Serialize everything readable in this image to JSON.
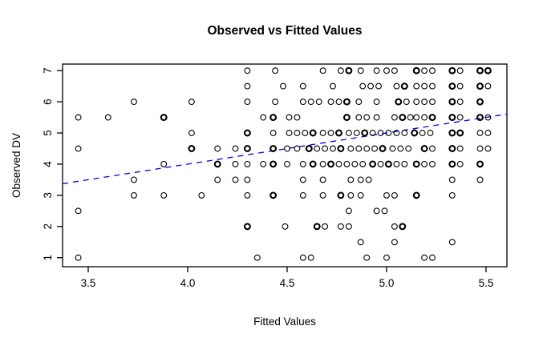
{
  "chart_data": {
    "type": "scatter",
    "title": "Observed vs Fitted Values",
    "xlabel": "Fitted Values",
    "ylabel": "Observed DV",
    "xlim": [
      3.371,
      5.605
    ],
    "ylim": [
      0.71,
      7.21
    ],
    "grid": false,
    "legend": "none",
    "x_ticks": {
      "values": [
        3.5,
        4.0,
        4.5,
        5.0,
        5.5
      ],
      "labels": [
        "3.5",
        "4.0",
        "4.5",
        "5.0",
        "5.5"
      ]
    },
    "y_ticks": {
      "values": [
        1,
        2,
        3,
        4,
        5,
        6,
        7
      ],
      "labels": [
        "1",
        "2",
        "3",
        "4",
        "5",
        "6",
        "7"
      ]
    },
    "marker": {
      "shape": "open-circle",
      "color": "#000000"
    },
    "reference_line": {
      "kind": "identity",
      "intercept": 0,
      "slope": 1,
      "style": "dashed",
      "color": "#0000EE"
    },
    "points_format": [
      "fitted_x",
      "observed_y",
      "bold_overplot_flag"
    ],
    "points": [
      [
        4.3,
        7,
        0
      ],
      [
        4.44,
        7,
        0
      ],
      [
        4.68,
        7,
        0
      ],
      [
        4.77,
        7,
        0
      ],
      [
        4.81,
        7,
        1
      ],
      [
        4.87,
        7,
        0
      ],
      [
        4.95,
        7,
        0
      ],
      [
        5.0,
        7,
        0
      ],
      [
        5.04,
        7,
        0
      ],
      [
        5.15,
        7,
        1
      ],
      [
        5.19,
        7,
        0
      ],
      [
        5.23,
        7,
        0
      ],
      [
        5.33,
        7,
        1
      ],
      [
        5.37,
        7,
        0
      ],
      [
        5.47,
        7,
        1
      ],
      [
        5.51,
        7,
        1
      ],
      [
        4.3,
        6.5,
        0
      ],
      [
        4.48,
        6.5,
        0
      ],
      [
        4.58,
        6.5,
        0
      ],
      [
        4.73,
        6.5,
        0
      ],
      [
        4.88,
        6.5,
        0
      ],
      [
        4.92,
        6.5,
        0
      ],
      [
        4.96,
        6.5,
        0
      ],
      [
        5.05,
        6.5,
        0
      ],
      [
        5.09,
        6.5,
        1
      ],
      [
        5.15,
        6.5,
        0
      ],
      [
        5.19,
        6.5,
        0
      ],
      [
        5.23,
        6.5,
        0
      ],
      [
        5.33,
        6.5,
        1
      ],
      [
        5.37,
        6.5,
        0
      ],
      [
        5.47,
        6.5,
        1
      ],
      [
        5.51,
        6.5,
        0
      ],
      [
        3.73,
        6,
        0
      ],
      [
        4.02,
        6,
        0
      ],
      [
        4.3,
        6,
        0
      ],
      [
        4.44,
        6,
        0
      ],
      [
        4.58,
        6,
        0
      ],
      [
        4.62,
        6,
        0
      ],
      [
        4.66,
        6,
        0
      ],
      [
        4.72,
        6,
        0
      ],
      [
        4.76,
        6,
        0
      ],
      [
        4.8,
        6,
        1
      ],
      [
        4.86,
        6,
        0
      ],
      [
        4.95,
        6,
        0
      ],
      [
        5.06,
        6,
        1
      ],
      [
        5.1,
        6,
        0
      ],
      [
        5.15,
        6,
        0
      ],
      [
        5.19,
        6,
        0
      ],
      [
        5.23,
        6,
        0
      ],
      [
        5.33,
        6,
        1
      ],
      [
        5.37,
        6,
        0
      ],
      [
        5.47,
        6,
        1
      ],
      [
        3.45,
        5.5,
        0
      ],
      [
        3.6,
        5.5,
        0
      ],
      [
        3.88,
        5.5,
        1
      ],
      [
        4.38,
        5.5,
        0
      ],
      [
        4.43,
        5.5,
        1
      ],
      [
        4.51,
        5.5,
        0
      ],
      [
        4.55,
        5.5,
        0
      ],
      [
        4.8,
        5.5,
        1
      ],
      [
        4.86,
        5.5,
        0
      ],
      [
        4.9,
        5.5,
        0
      ],
      [
        4.95,
        5.5,
        0
      ],
      [
        5.04,
        5.5,
        0
      ],
      [
        5.08,
        5.5,
        1
      ],
      [
        5.12,
        5.5,
        0
      ],
      [
        5.15,
        5.5,
        0
      ],
      [
        5.19,
        5.5,
        0
      ],
      [
        5.23,
        5.5,
        1
      ],
      [
        5.33,
        5.5,
        1
      ],
      [
        5.37,
        5.5,
        0
      ],
      [
        5.47,
        5.5,
        1
      ],
      [
        5.51,
        5.5,
        0
      ],
      [
        4.02,
        5,
        0
      ],
      [
        4.3,
        5,
        1
      ],
      [
        4.43,
        5,
        0
      ],
      [
        4.51,
        5,
        0
      ],
      [
        4.55,
        5,
        0
      ],
      [
        4.59,
        5,
        0
      ],
      [
        4.63,
        5,
        1
      ],
      [
        4.68,
        5,
        0
      ],
      [
        4.72,
        5,
        0
      ],
      [
        4.76,
        5,
        1
      ],
      [
        4.81,
        5,
        0
      ],
      [
        4.85,
        5,
        0
      ],
      [
        4.89,
        5,
        1
      ],
      [
        4.93,
        5,
        0
      ],
      [
        4.97,
        5,
        0
      ],
      [
        5.01,
        5,
        0
      ],
      [
        5.05,
        5,
        0
      ],
      [
        5.09,
        5,
        0
      ],
      [
        5.14,
        5,
        1
      ],
      [
        5.18,
        5,
        0
      ],
      [
        5.22,
        5,
        0
      ],
      [
        5.33,
        5,
        1
      ],
      [
        5.37,
        5,
        1
      ],
      [
        5.47,
        5,
        0
      ],
      [
        5.51,
        5,
        0
      ],
      [
        3.45,
        4.5,
        0
      ],
      [
        4.02,
        4.5,
        1
      ],
      [
        4.15,
        4.5,
        0
      ],
      [
        4.24,
        4.5,
        0
      ],
      [
        4.3,
        4.5,
        1
      ],
      [
        4.43,
        4.5,
        1
      ],
      [
        4.5,
        4.5,
        0
      ],
      [
        4.55,
        4.5,
        0
      ],
      [
        4.61,
        4.5,
        1
      ],
      [
        4.65,
        4.5,
        0
      ],
      [
        4.69,
        4.5,
        0
      ],
      [
        4.73,
        4.5,
        0
      ],
      [
        4.77,
        4.5,
        1
      ],
      [
        4.82,
        4.5,
        0
      ],
      [
        4.86,
        4.5,
        0
      ],
      [
        4.9,
        4.5,
        0
      ],
      [
        4.94,
        4.5,
        0
      ],
      [
        4.98,
        4.5,
        1
      ],
      [
        5.03,
        4.5,
        0
      ],
      [
        5.07,
        4.5,
        0
      ],
      [
        5.11,
        4.5,
        0
      ],
      [
        5.19,
        4.5,
        1
      ],
      [
        5.23,
        4.5,
        0
      ],
      [
        5.33,
        4.5,
        1
      ],
      [
        5.37,
        4.5,
        0
      ],
      [
        5.47,
        4.5,
        0
      ],
      [
        5.51,
        4.5,
        0
      ],
      [
        3.88,
        4,
        0
      ],
      [
        4.15,
        4,
        1
      ],
      [
        4.24,
        4,
        0
      ],
      [
        4.3,
        4,
        0
      ],
      [
        4.38,
        4,
        0
      ],
      [
        4.43,
        4,
        1
      ],
      [
        4.5,
        4,
        0
      ],
      [
        4.58,
        4,
        0
      ],
      [
        4.63,
        4,
        1
      ],
      [
        4.68,
        4,
        0
      ],
      [
        4.72,
        4,
        1
      ],
      [
        4.76,
        4,
        0
      ],
      [
        4.8,
        4,
        0
      ],
      [
        4.84,
        4,
        0
      ],
      [
        4.88,
        4,
        0
      ],
      [
        4.93,
        4,
        1
      ],
      [
        4.97,
        4,
        0
      ],
      [
        5.01,
        4,
        1
      ],
      [
        5.05,
        4,
        0
      ],
      [
        5.09,
        4,
        0
      ],
      [
        5.15,
        4,
        1
      ],
      [
        5.19,
        4,
        0
      ],
      [
        5.23,
        4,
        0
      ],
      [
        5.33,
        4,
        1
      ],
      [
        5.37,
        4,
        0
      ],
      [
        5.47,
        4,
        1
      ],
      [
        3.73,
        3.5,
        0
      ],
      [
        4.15,
        3.5,
        0
      ],
      [
        4.24,
        3.5,
        0
      ],
      [
        4.3,
        3.5,
        0
      ],
      [
        4.58,
        3.5,
        0
      ],
      [
        4.68,
        3.5,
        0
      ],
      [
        4.82,
        3.5,
        0
      ],
      [
        4.87,
        3.5,
        0
      ],
      [
        4.91,
        3.5,
        0
      ],
      [
        5.33,
        3.5,
        0
      ],
      [
        5.47,
        3.5,
        0
      ],
      [
        3.73,
        3,
        0
      ],
      [
        3.88,
        3,
        0
      ],
      [
        4.07,
        3,
        0
      ],
      [
        4.3,
        3,
        0
      ],
      [
        4.43,
        3,
        1
      ],
      [
        4.58,
        3,
        0
      ],
      [
        4.68,
        3,
        0
      ],
      [
        4.77,
        3,
        1
      ],
      [
        4.82,
        3,
        0
      ],
      [
        4.87,
        3,
        0
      ],
      [
        5.0,
        3,
        0
      ],
      [
        5.04,
        3,
        0
      ],
      [
        5.15,
        3,
        1
      ],
      [
        5.33,
        3,
        0
      ],
      [
        3.45,
        2.5,
        0
      ],
      [
        4.81,
        2.5,
        0
      ],
      [
        4.95,
        2.5,
        0
      ],
      [
        4.99,
        2.5,
        0
      ],
      [
        4.3,
        2,
        1
      ],
      [
        4.49,
        2,
        0
      ],
      [
        4.65,
        2,
        1
      ],
      [
        4.69,
        2,
        0
      ],
      [
        4.77,
        2,
        0
      ],
      [
        4.81,
        2,
        0
      ],
      [
        5.04,
        2,
        0
      ],
      [
        5.08,
        2,
        1
      ],
      [
        4.87,
        1.5,
        0
      ],
      [
        5.04,
        1.5,
        0
      ],
      [
        5.33,
        1.5,
        0
      ],
      [
        3.45,
        1,
        0
      ],
      [
        4.35,
        1,
        0
      ],
      [
        4.58,
        1,
        0
      ],
      [
        4.62,
        1,
        0
      ],
      [
        4.9,
        1,
        0
      ],
      [
        5.0,
        1,
        0
      ],
      [
        5.19,
        1,
        0
      ],
      [
        5.23,
        1,
        0
      ]
    ]
  }
}
